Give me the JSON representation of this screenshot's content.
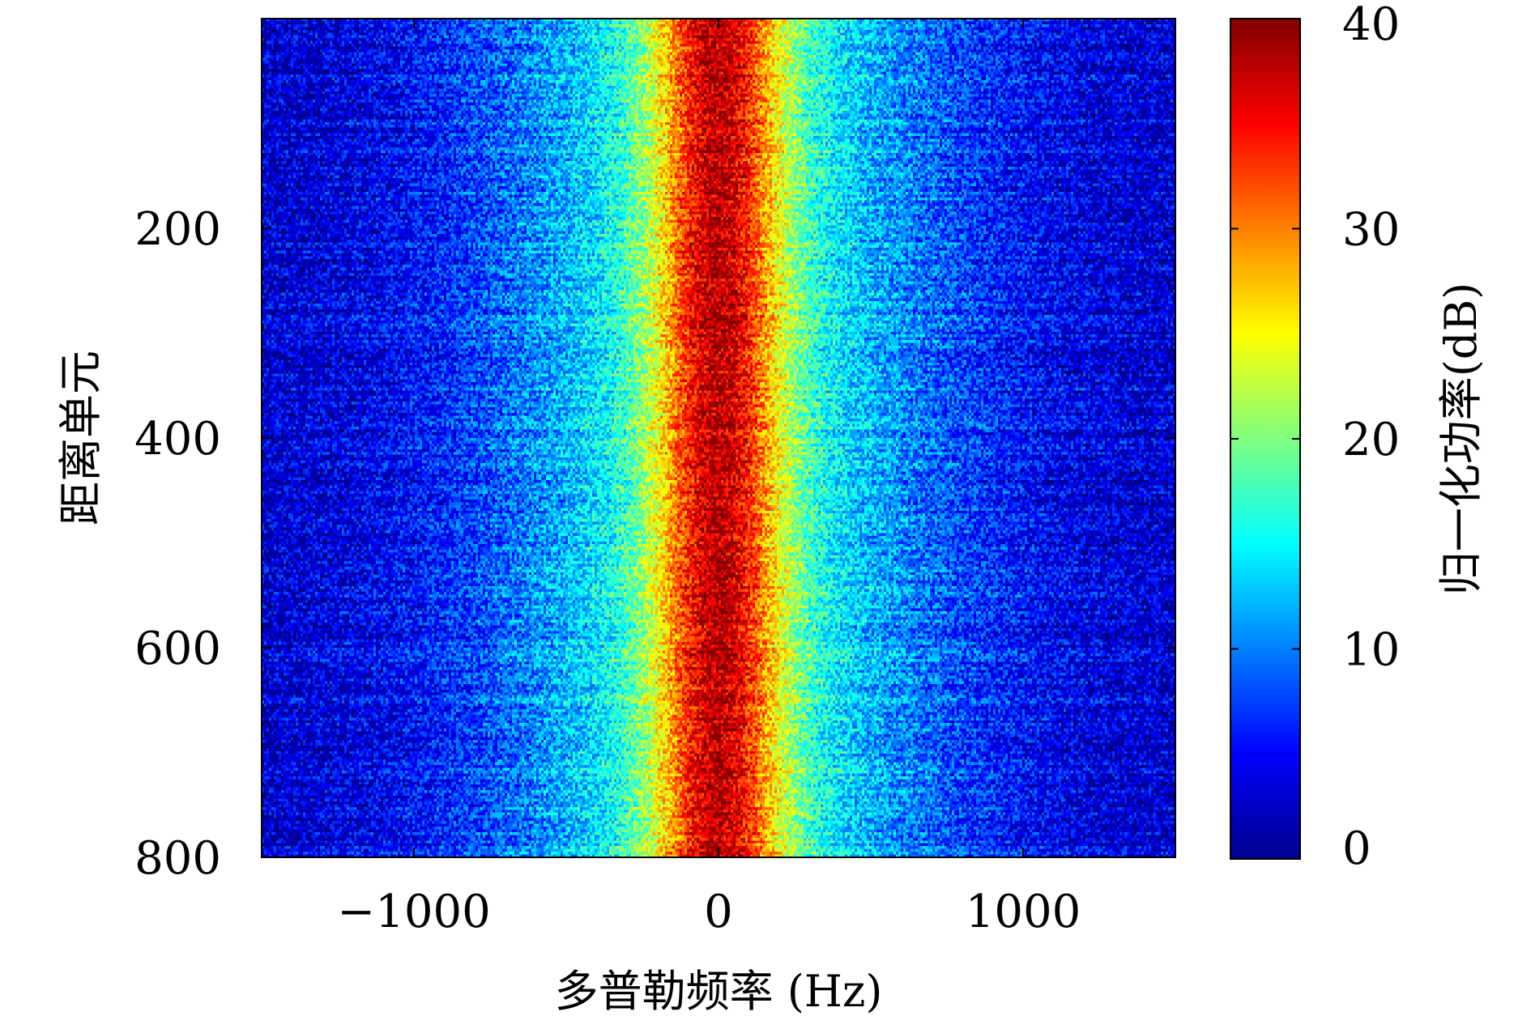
{
  "chart_data": {
    "type": "heatmap",
    "title": "",
    "xlabel": "多普勒频率 (Hz)",
    "ylabel": "距离单元",
    "xlim": [
      -1500,
      1500
    ],
    "ylim": [
      800,
      0
    ],
    "y_inverted": true,
    "xticks": [
      -1000,
      0,
      1000
    ],
    "xtick_labels": [
      "−1000",
      "0",
      "1000"
    ],
    "yticks": [
      200,
      400,
      600,
      800
    ],
    "ytick_labels": [
      "200",
      "400",
      "600",
      "800"
    ],
    "colorbar": {
      "label": "归一化功率(dB)",
      "range": [
        0,
        40
      ],
      "ticks": [
        0,
        10,
        20,
        30,
        40
      ],
      "tick_labels": [
        "0",
        "10",
        "20",
        "30",
        "40"
      ],
      "colormap": "jet"
    },
    "field": {
      "description_values": "power concentrated near 0 Hz across all range cells",
      "peak_frequency_hz": 0,
      "peak_power_db": 38,
      "main_lobe_half_width_hz": 150,
      "skirt_half_width_hz": 550,
      "background_power_db": 3
    }
  }
}
